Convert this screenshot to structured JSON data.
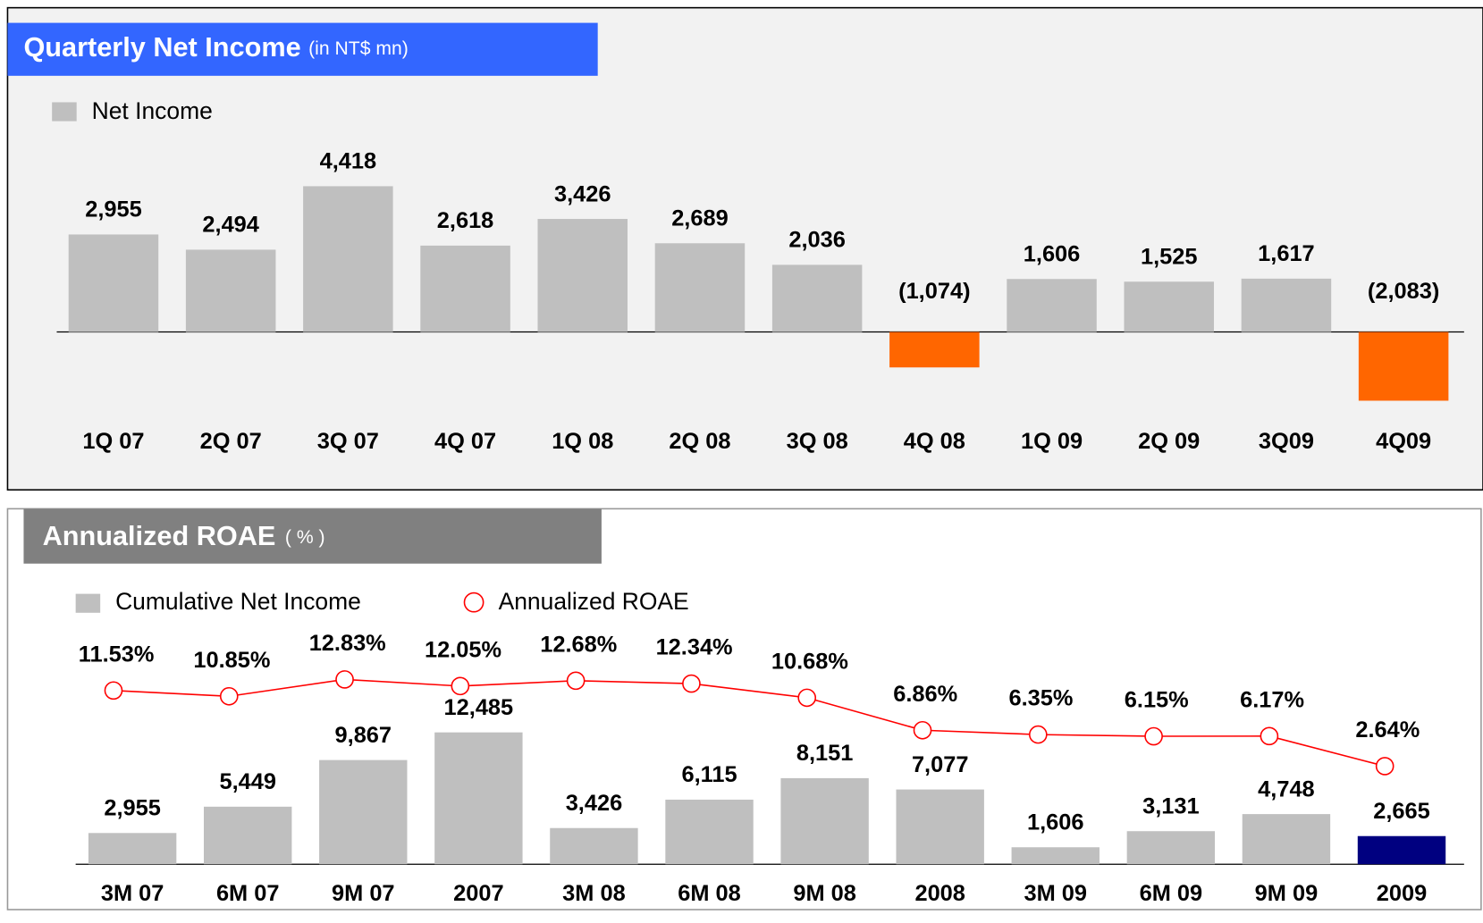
{
  "chart_data": [
    {
      "type": "bar",
      "title": "Quarterly Net Income",
      "subtitle": "(in NT$ mn)",
      "legend": "Net Income",
      "categories": [
        "1Q 07",
        "2Q 07",
        "3Q 07",
        "4Q 07",
        "1Q 08",
        "2Q 08",
        "3Q 08",
        "4Q 08",
        "1Q 09",
        "2Q 09",
        "3Q09",
        "4Q09"
      ],
      "values": [
        2955,
        2494,
        4418,
        2618,
        3426,
        2689,
        2036,
        -1074,
        1606,
        1525,
        1617,
        -2083
      ],
      "value_labels": [
        "2,955",
        "2,494",
        "4,418",
        "2,618",
        "3,426",
        "2,689",
        "2,036",
        "(1,074)",
        "1,606",
        "1,525",
        "1,617",
        "(2,083)"
      ],
      "color": "#bfbfbf",
      "negative_color": "#ff6600",
      "negative_label_color": "#ff0000"
    },
    {
      "type": "bar_line",
      "title": "Annualized ROAE",
      "subtitle": "( % )",
      "categories": [
        "3M 07",
        "6M 07",
        "9M 07",
        "2007",
        "3M 08",
        "6M 08",
        "9M 08",
        "2008",
        "3M 09",
        "6M 09",
        "9M 09",
        "2009"
      ],
      "series": [
        {
          "name": "Cumulative Net Income",
          "values": [
            2955,
            5449,
            9867,
            12485,
            3426,
            6115,
            8151,
            7077,
            1606,
            3131,
            4748,
            2665
          ],
          "value_labels": [
            "2,955",
            "5,449",
            "9,867",
            "12,485",
            "3,426",
            "6,115",
            "8,151",
            "7,077",
            "1,606",
            "3,131",
            "4,748",
            "2,665"
          ],
          "color": "#bfbfbf",
          "colors": [
            "#bfbfbf",
            "#bfbfbf",
            "#bfbfbf",
            "#bfbfbf",
            "#bfbfbf",
            "#bfbfbf",
            "#bfbfbf",
            "#bfbfbf",
            "#bfbfbf",
            "#bfbfbf",
            "#bfbfbf",
            "#000080"
          ]
        },
        {
          "name": "Annualized ROAE",
          "axis": "y2",
          "color": "#ff0000",
          "values": [
            11.53,
            10.85,
            12.83,
            12.05,
            12.68,
            12.34,
            10.68,
            6.86,
            6.35,
            6.15,
            6.17,
            2.64
          ],
          "value_labels": [
            "11.53%",
            "10.85%",
            "12.83%",
            "12.05%",
            "12.68%",
            "12.34%",
            "10.68%",
            "6.86%",
            "6.35%",
            "6.15%",
            "6.17%",
            "2.64%"
          ]
        }
      ]
    }
  ]
}
